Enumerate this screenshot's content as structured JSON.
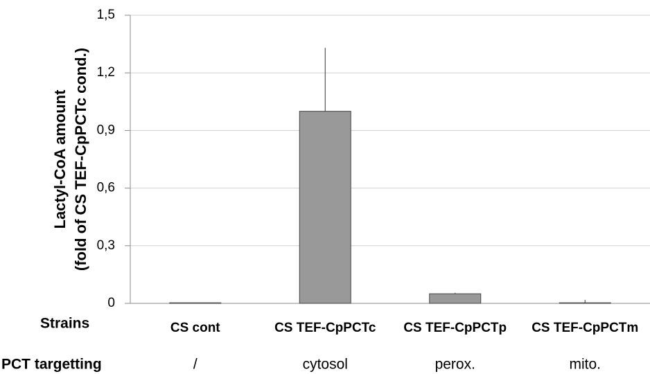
{
  "chart_data": {
    "type": "bar",
    "y_label_lines": [
      "Lactyl-CoA amount",
      "(fold of CS TEF-CpPCTc cond.)"
    ],
    "row_labels": [
      "Strains",
      "PCT targetting"
    ],
    "categories": [
      "CS cont",
      "CS TEF-CpPCTc",
      "CS TEF-CpPCTp",
      "CS TEF-CpPCTm"
    ],
    "targeting": [
      "/",
      "cytosol",
      "perox.",
      "mito."
    ],
    "values": [
      0.003,
      1.0,
      0.05,
      0.003
    ],
    "errors": [
      0,
      0.33,
      0.005,
      0.015
    ],
    "color": "#999999",
    "ylim": [
      0,
      1.5
    ],
    "yticks": [
      0,
      {
        "value": 0.3,
        "label": "0,3"
      },
      {
        "value": 0.6,
        "label": "0,6"
      },
      {
        "value": 0.9,
        "label": "0,9"
      },
      {
        "value": 1.2,
        "label": "1,2"
      },
      {
        "value": 1.5,
        "label": "1,5"
      }
    ],
    "grid": true
  }
}
